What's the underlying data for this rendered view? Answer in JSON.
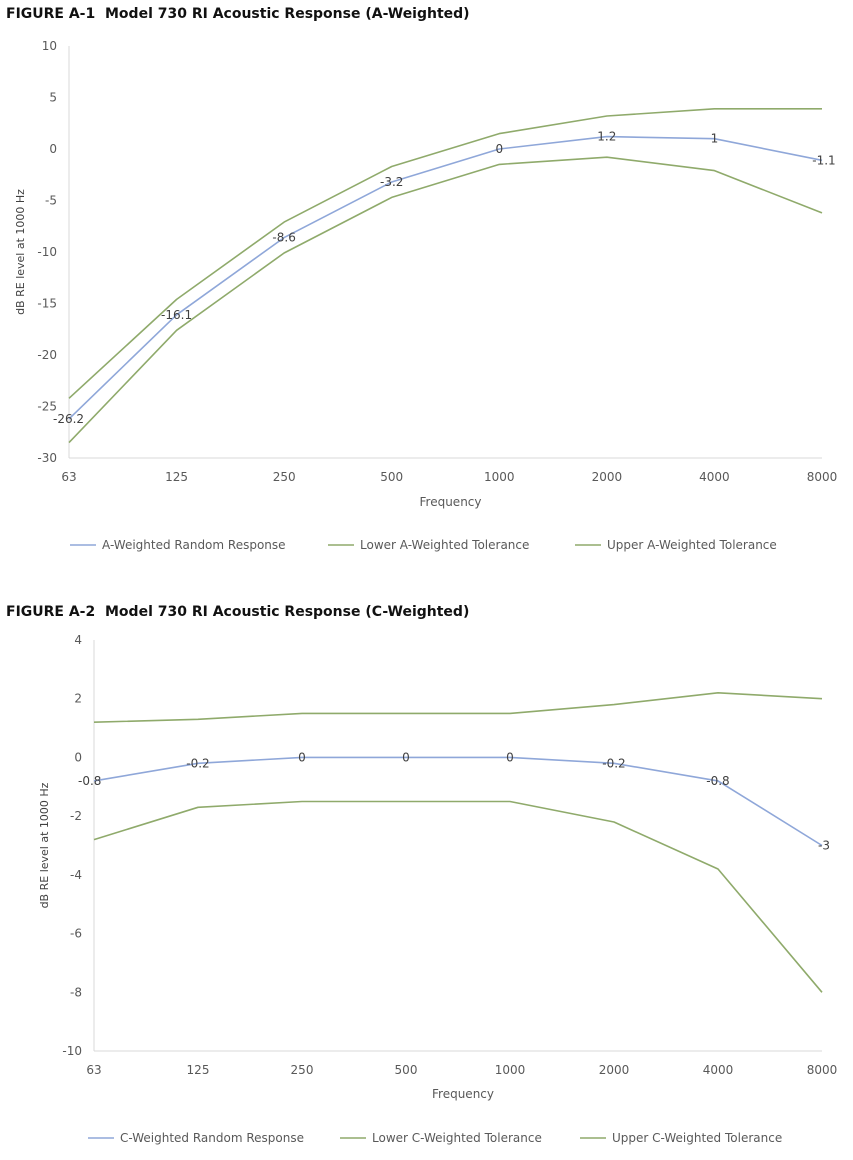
{
  "chart_data": [
    {
      "type": "line",
      "figure_label": "FIGURE A-1",
      "title": "Model 730 RI Acoustic Response (A-Weighted)",
      "xlabel": "Frequency",
      "ylabel": "dB RE level at 1000 Hz",
      "categories": [
        "63",
        "125",
        "250",
        "500",
        "1000",
        "2000",
        "4000",
        "8000"
      ],
      "ylim": [
        -30,
        10
      ],
      "yticks": [
        10,
        5,
        0,
        -5,
        -10,
        -15,
        -20,
        -25,
        -30
      ],
      "series": [
        {
          "name": "A-Weighted Random Response",
          "color": "#8fa7d9",
          "values": [
            -26.2,
            -16.1,
            -8.6,
            -3.2,
            0,
            1.2,
            1,
            -1.1
          ],
          "labels": [
            "-26.2",
            "-16.1",
            "-8.6",
            "-3.2",
            "0",
            "1.2",
            "1",
            "-1.1"
          ]
        },
        {
          "name": "Lower A-Weighted Tolerance",
          "color": "#8faa6b",
          "values": [
            -28.5,
            -17.6,
            -10.1,
            -4.7,
            -1.5,
            -0.8,
            -2.1,
            -6.2
          ]
        },
        {
          "name": "Upper A-Weighted Tolerance",
          "color": "#8faa6b",
          "values": [
            -24.2,
            -14.6,
            -7.1,
            -1.7,
            1.5,
            3.2,
            3.9,
            3.9
          ]
        }
      ]
    },
    {
      "type": "line",
      "figure_label": "FIGURE A-2",
      "title": "Model 730 RI Acoustic Response (C-Weighted)",
      "xlabel": "Frequency",
      "ylabel": "dB RE level at 1000 Hz",
      "categories": [
        "63",
        "125",
        "250",
        "500",
        "1000",
        "2000",
        "4000",
        "8000"
      ],
      "ylim": [
        -10,
        4
      ],
      "yticks": [
        4,
        2,
        0,
        -2,
        -4,
        -6,
        -8,
        -10
      ],
      "series": [
        {
          "name": "C-Weighted Random Response",
          "color": "#8fa7d9",
          "values": [
            -0.8,
            -0.2,
            0,
            0,
            0,
            -0.2,
            -0.8,
            -3
          ],
          "labels": [
            "-0.8",
            "-0.2",
            "0",
            "0",
            "0",
            "-0.2",
            "-0.8",
            "-3"
          ]
        },
        {
          "name": "Lower C-Weighted Tolerance",
          "color": "#8faa6b",
          "values": [
            -2.8,
            -1.7,
            -1.5,
            -1.5,
            -1.5,
            -2.2,
            -3.8,
            -8
          ]
        },
        {
          "name": "Upper C-Weighted Tolerance",
          "color": "#8faa6b",
          "values": [
            1.2,
            1.3,
            1.5,
            1.5,
            1.5,
            1.8,
            2.2,
            2
          ]
        }
      ]
    }
  ]
}
